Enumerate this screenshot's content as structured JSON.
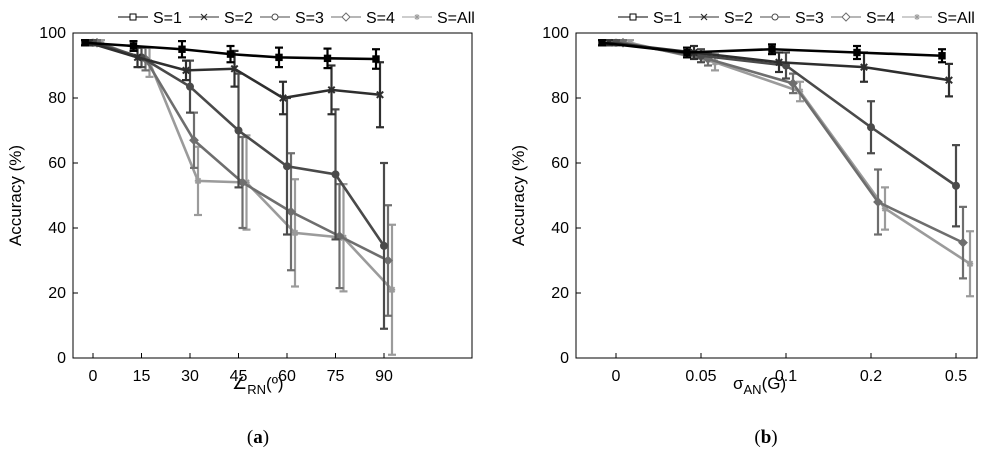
{
  "chart_data": [
    {
      "type": "line",
      "panel_label": "a",
      "ylabel": "Accuracy (%)",
      "xlabel": "∠RN(º)",
      "xlabel_main": "∠",
      "xlabel_sub": "RN",
      "xlabel_tail": "(º)",
      "ylim": [
        0,
        100
      ],
      "yticks": [
        0,
        20,
        40,
        60,
        80,
        100
      ],
      "categories": [
        "0",
        "15",
        "30",
        "45",
        "60",
        "75",
        "90"
      ],
      "legend": [
        "S=1",
        "S=2",
        "S=3",
        "S=4",
        "S=All"
      ],
      "series": [
        {
          "name": "S=1",
          "color": "#000000",
          "marker": "square",
          "values": [
            97,
            96,
            95,
            93.5,
            92.5,
            92.2,
            92
          ],
          "err": [
            0.8,
            1.5,
            2.5,
            2.5,
            3,
            3,
            3
          ]
        },
        {
          "name": "S=2",
          "color": "#2e2e2e",
          "marker": "x",
          "values": [
            97,
            92.5,
            88.5,
            89,
            80,
            82.5,
            81
          ],
          "err": [
            0.8,
            3,
            3,
            5.5,
            5,
            7.5,
            10
          ]
        },
        {
          "name": "S=3",
          "color": "#4a4a4a",
          "marker": "circle",
          "values": [
            97,
            92.5,
            83.5,
            70,
            59,
            56.5,
            34.5
          ],
          "err": [
            0.8,
            3,
            8,
            17.5,
            21,
            20,
            25.5
          ]
        },
        {
          "name": "S=4",
          "color": "#6e6e6e",
          "marker": "diamond",
          "values": [
            97,
            92,
            67,
            54,
            45,
            37.5,
            30
          ],
          "err": [
            0.8,
            3.5,
            8.5,
            14,
            18,
            16,
            17
          ]
        },
        {
          "name": "S=All",
          "color": "#9b9b9b",
          "marker": "star",
          "values": [
            97,
            91,
            54.5,
            54,
            38.5,
            37,
            21
          ],
          "err": [
            0.8,
            4.5,
            10.5,
            14.5,
            16.5,
            16.5,
            20
          ]
        }
      ]
    },
    {
      "type": "line",
      "panel_label": "b",
      "ylabel": "Accuracy (%)",
      "xlabel": "σAN(G)",
      "xlabel_main": "σ",
      "xlabel_sub": "AN",
      "xlabel_tail": "(G)",
      "ylim": [
        0,
        100
      ],
      "yticks": [
        0,
        20,
        40,
        60,
        80,
        100
      ],
      "categories": [
        "0",
        "0.05",
        "0.1",
        "0.2",
        "0.5"
      ],
      "legend": [
        "S=1",
        "S=2",
        "S=3",
        "S=4",
        "S=All"
      ],
      "series": [
        {
          "name": "S=1",
          "color": "#000000",
          "marker": "square",
          "values": [
            97,
            94,
            95,
            94,
            93
          ],
          "err": [
            0.8,
            1.5,
            1.5,
            2,
            2
          ]
        },
        {
          "name": "S=2",
          "color": "#2e2e2e",
          "marker": "x",
          "values": [
            97,
            94,
            91,
            89.5,
            85.5
          ],
          "err": [
            0.8,
            2,
            3,
            4.5,
            5
          ]
        },
        {
          "name": "S=3",
          "color": "#4a4a4a",
          "marker": "circle",
          "values": [
            97,
            93,
            90,
            71,
            53
          ],
          "err": [
            0.8,
            2,
            4,
            8,
            12.5
          ]
        },
        {
          "name": "S=4",
          "color": "#6e6e6e",
          "marker": "diamond",
          "values": [
            97,
            92,
            84.5,
            48,
            35.5
          ],
          "err": [
            0.8,
            2,
            3,
            10,
            11
          ]
        },
        {
          "name": "S=All",
          "color": "#9b9b9b",
          "marker": "star",
          "values": [
            97,
            91,
            82,
            46,
            29
          ],
          "err": [
            0.8,
            2.5,
            3,
            6.5,
            10
          ]
        }
      ]
    }
  ]
}
